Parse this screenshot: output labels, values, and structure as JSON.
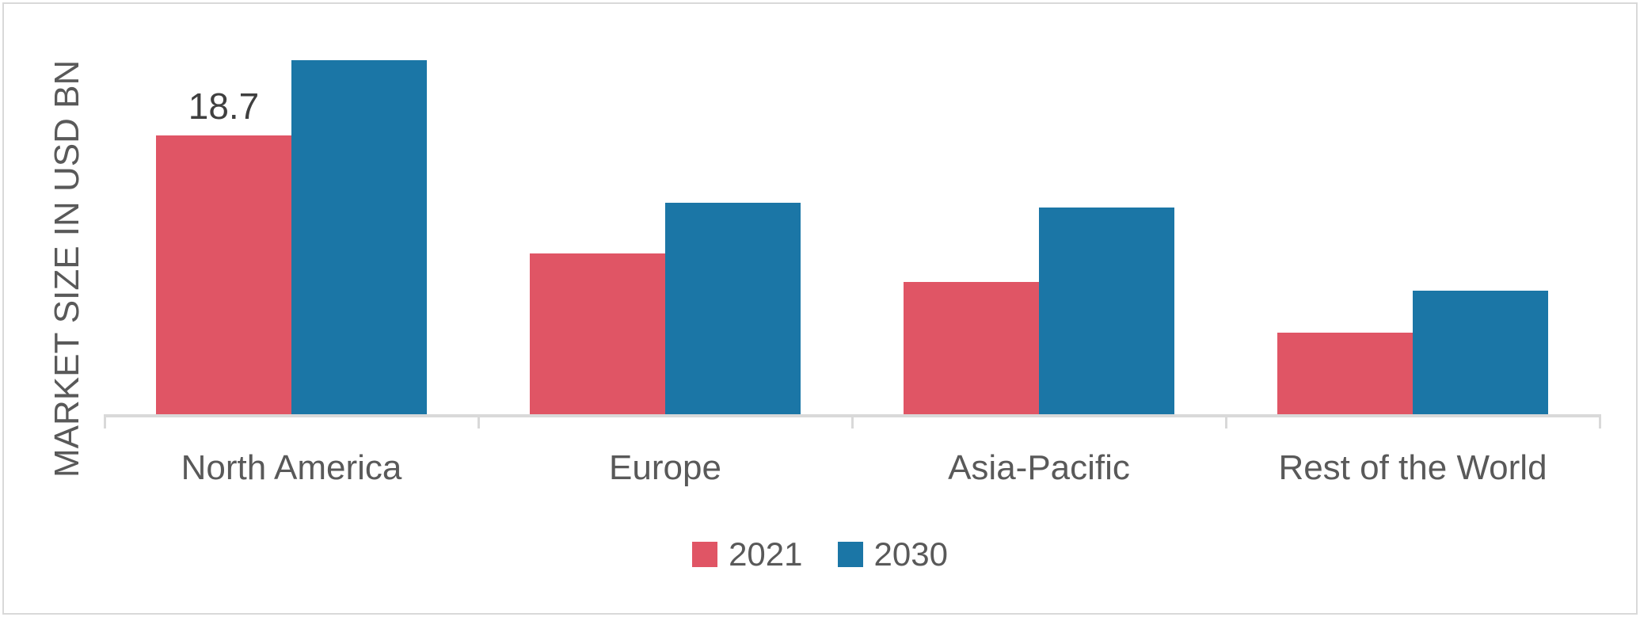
{
  "chart_data": {
    "type": "bar",
    "title": "",
    "xlabel": "",
    "ylabel": "MARKET SIZE IN USD BN",
    "categories": [
      "North America",
      "Europe",
      "Asia-Pacific",
      "Rest of the World"
    ],
    "series": [
      {
        "name": "2021",
        "color": "#e05565",
        "values": [
          18.7,
          10.8,
          8.9,
          5.5
        ]
      },
      {
        "name": "2030",
        "color": "#1b76a6",
        "values": [
          23.8,
          14.2,
          13.9,
          8.3
        ]
      }
    ],
    "data_labels": [
      {
        "series_index": 0,
        "category_index": 0,
        "text": "18.7"
      }
    ],
    "ylim": [
      0,
      25
    ],
    "grid": false,
    "legend_position": "bottom",
    "axis_color": "#d9d9d9",
    "category_label_color": "#595959",
    "data_label_color": "#3f3f3f"
  }
}
